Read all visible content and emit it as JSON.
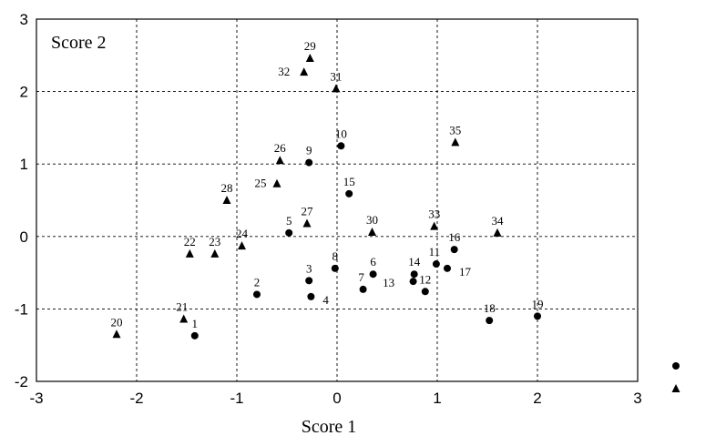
{
  "chart_data": {
    "type": "scatter",
    "title": "Score 2",
    "xlabel": "Score 1",
    "ylabel": "",
    "xlim": [
      -3,
      3
    ],
    "ylim": [
      -2,
      3
    ],
    "xticks": [
      "-3",
      "-2",
      "-1",
      "0",
      "1",
      "2",
      "3"
    ],
    "yticks": [
      "-2",
      "-1",
      "0",
      "1",
      "2",
      "3"
    ],
    "grid": true,
    "legend": {
      "placement": "right-outside",
      "entries": [
        {
          "marker": "circle"
        },
        {
          "marker": "triangle"
        }
      ]
    },
    "series": [
      {
        "marker": "circle",
        "points": [
          {
            "label": "1",
            "x": -1.42,
            "y": -1.37
          },
          {
            "label": "2",
            "x": -0.8,
            "y": -0.8
          },
          {
            "label": "3",
            "x": -0.28,
            "y": -0.61
          },
          {
            "label": "4",
            "x": -0.26,
            "y": -0.83
          },
          {
            "label": "5",
            "x": -0.48,
            "y": 0.05
          },
          {
            "label": "6",
            "x": 0.36,
            "y": -0.52
          },
          {
            "label": "7",
            "x": 0.26,
            "y": -0.73
          },
          {
            "label": "8",
            "x": -0.02,
            "y": -0.44
          },
          {
            "label": "9",
            "x": -0.28,
            "y": 1.02
          },
          {
            "label": "10",
            "x": 0.04,
            "y": 1.25
          },
          {
            "label": "11",
            "x": 0.99,
            "y": -0.38
          },
          {
            "label": "12",
            "x": 0.88,
            "y": -0.76
          },
          {
            "label": "13",
            "x": 0.76,
            "y": -0.62
          },
          {
            "label": "14",
            "x": 0.77,
            "y": -0.52
          },
          {
            "label": "15",
            "x": 0.12,
            "y": 0.59
          },
          {
            "label": "16",
            "x": 1.17,
            "y": -0.18
          },
          {
            "label": "17",
            "x": 1.1,
            "y": -0.44
          },
          {
            "label": "18",
            "x": 1.52,
            "y": -1.16
          },
          {
            "label": "19",
            "x": 2.0,
            "y": -1.1
          }
        ]
      },
      {
        "marker": "triangle",
        "points": [
          {
            "label": "20",
            "x": -2.2,
            "y": -1.35
          },
          {
            "label": "21",
            "x": -1.53,
            "y": -1.14
          },
          {
            "label": "22",
            "x": -1.47,
            "y": -0.24
          },
          {
            "label": "23",
            "x": -1.22,
            "y": -0.24
          },
          {
            "label": "24",
            "x": -0.95,
            "y": -0.13
          },
          {
            "label": "25",
            "x": -0.6,
            "y": 0.73
          },
          {
            "label": "26",
            "x": -0.57,
            "y": 1.05
          },
          {
            "label": "27",
            "x": -0.3,
            "y": 0.18
          },
          {
            "label": "28",
            "x": -1.1,
            "y": 0.5
          },
          {
            "label": "29",
            "x": -0.27,
            "y": 2.46
          },
          {
            "label": "30",
            "x": 0.35,
            "y": 0.06
          },
          {
            "label": "31",
            "x": -0.01,
            "y": 2.04
          },
          {
            "label": "32",
            "x": -0.33,
            "y": 2.27
          },
          {
            "label": "33",
            "x": 0.97,
            "y": 0.14
          },
          {
            "label": "34",
            "x": 1.6,
            "y": 0.05
          },
          {
            "label": "35",
            "x": 1.18,
            "y": 1.3
          }
        ]
      }
    ]
  }
}
